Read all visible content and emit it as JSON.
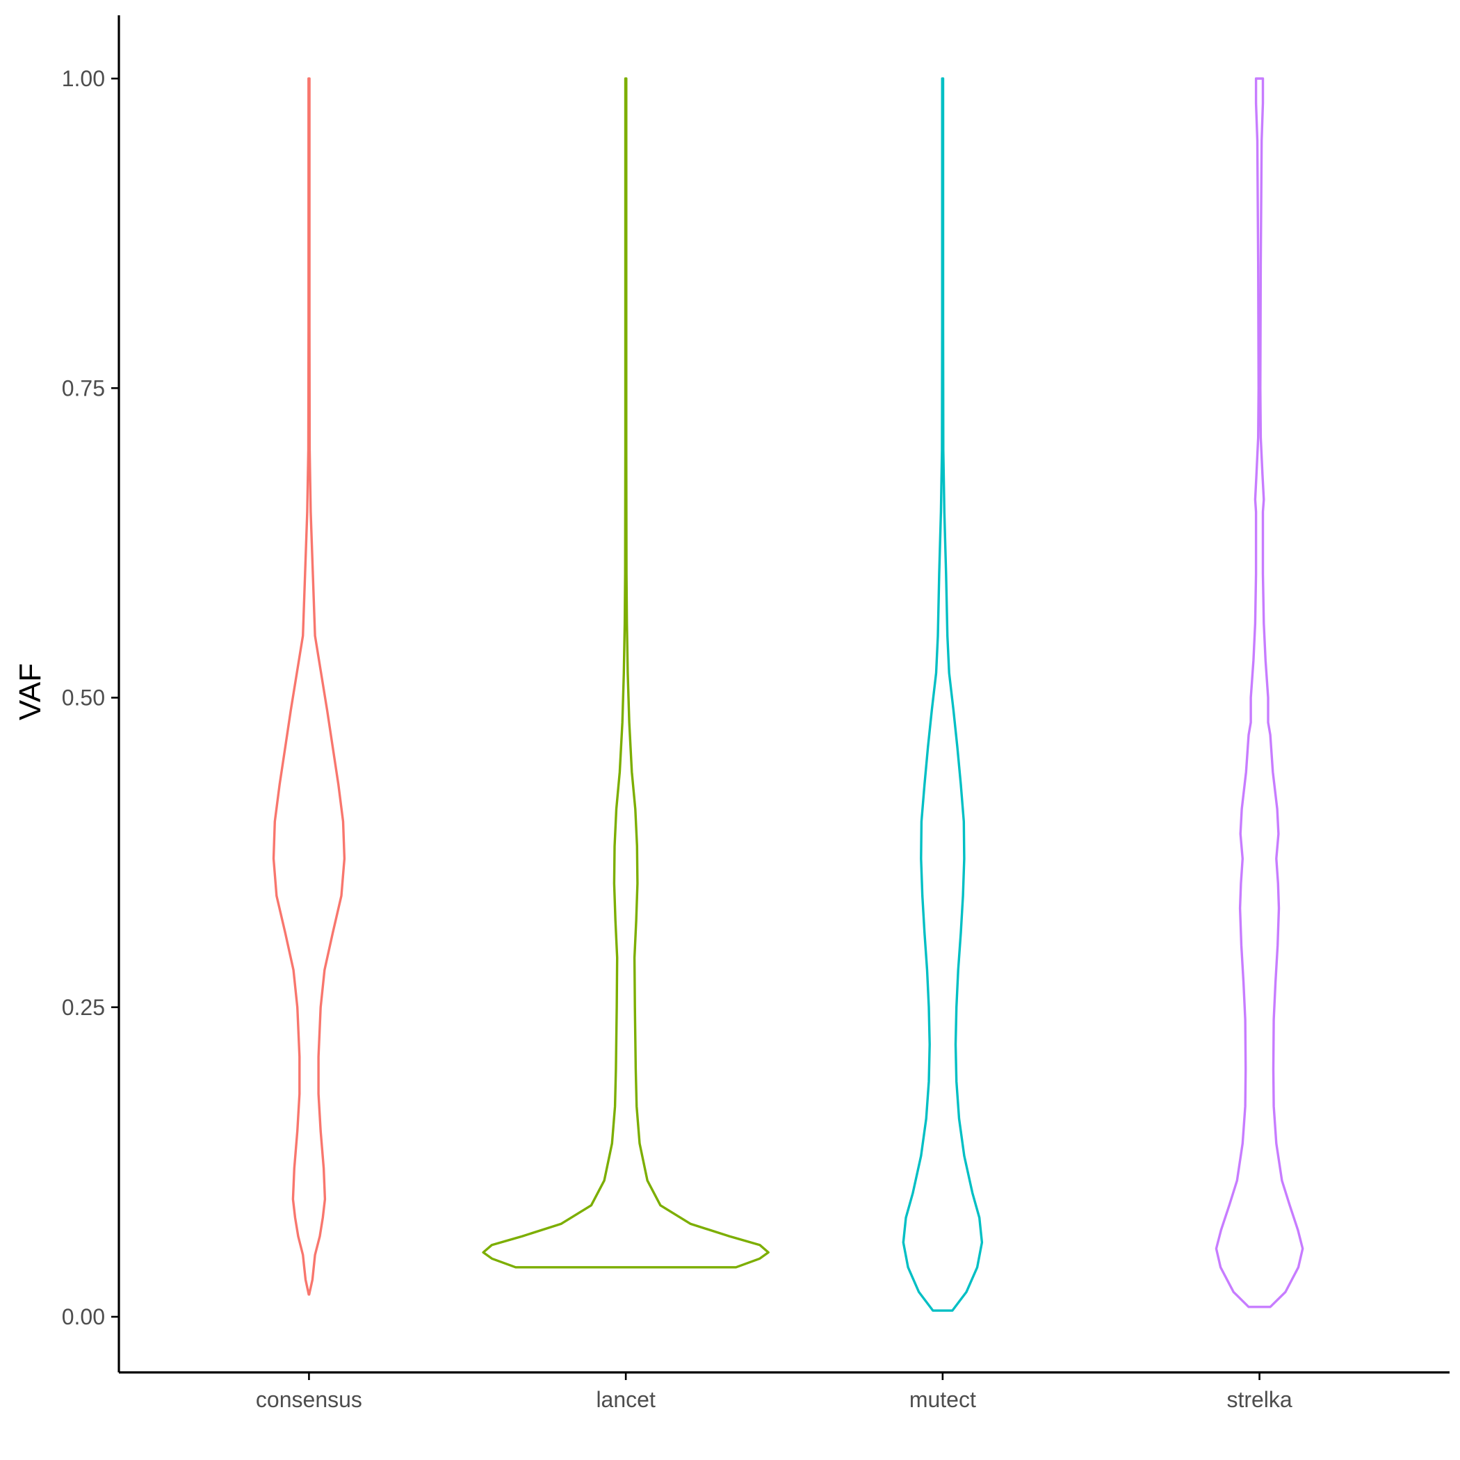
{
  "chart_data": {
    "type": "violin",
    "title": "",
    "xlabel": "",
    "ylabel": "VAF",
    "ylim": [
      -0.045,
      1.05
    ],
    "yticks": [
      0.0,
      0.25,
      0.5,
      0.75,
      1.0
    ],
    "ytick_labels": [
      "0.00",
      "0.25",
      "0.50",
      "0.75",
      "1.00"
    ],
    "grid": false,
    "legend": "none",
    "categories": [
      "consensus",
      "lancet",
      "mutect",
      "strelka"
    ],
    "series": [
      {
        "category": "consensus",
        "color": "#F8766D",
        "min": 0.018,
        "max": 1.0,
        "density": [
          [
            0.018,
            0.001
          ],
          [
            0.03,
            0.016
          ],
          [
            0.05,
            0.028
          ],
          [
            0.065,
            0.05
          ],
          [
            0.08,
            0.064
          ],
          [
            0.095,
            0.074
          ],
          [
            0.12,
            0.068
          ],
          [
            0.15,
            0.054
          ],
          [
            0.18,
            0.044
          ],
          [
            0.21,
            0.044
          ],
          [
            0.25,
            0.054
          ],
          [
            0.28,
            0.072
          ],
          [
            0.31,
            0.11
          ],
          [
            0.34,
            0.15
          ],
          [
            0.37,
            0.164
          ],
          [
            0.4,
            0.158
          ],
          [
            0.43,
            0.136
          ],
          [
            0.46,
            0.11
          ],
          [
            0.49,
            0.084
          ],
          [
            0.52,
            0.056
          ],
          [
            0.55,
            0.028
          ],
          [
            0.6,
            0.018
          ],
          [
            0.65,
            0.008
          ],
          [
            0.7,
            0.003
          ],
          [
            0.8,
            0.002
          ],
          [
            1.0,
            0.002
          ]
        ]
      },
      {
        "category": "lancet",
        "color": "#7CAE00",
        "min": 0.04,
        "max": 1.0,
        "density": [
          [
            0.04,
            0.51
          ],
          [
            0.047,
            0.62
          ],
          [
            0.052,
            0.66
          ],
          [
            0.058,
            0.62
          ],
          [
            0.065,
            0.48
          ],
          [
            0.075,
            0.3
          ],
          [
            0.09,
            0.16
          ],
          [
            0.11,
            0.1
          ],
          [
            0.14,
            0.064
          ],
          [
            0.17,
            0.05
          ],
          [
            0.2,
            0.046
          ],
          [
            0.25,
            0.042
          ],
          [
            0.29,
            0.04
          ],
          [
            0.32,
            0.048
          ],
          [
            0.35,
            0.054
          ],
          [
            0.38,
            0.052
          ],
          [
            0.41,
            0.044
          ],
          [
            0.44,
            0.028
          ],
          [
            0.48,
            0.016
          ],
          [
            0.52,
            0.009
          ],
          [
            0.56,
            0.005
          ],
          [
            0.6,
            0.003
          ],
          [
            0.7,
            0.002
          ],
          [
            1.0,
            0.002
          ]
        ]
      },
      {
        "category": "mutect",
        "color": "#00BFC4",
        "min": 0.005,
        "max": 1.0,
        "density": [
          [
            0.005,
            0.045
          ],
          [
            0.02,
            0.11
          ],
          [
            0.04,
            0.16
          ],
          [
            0.06,
            0.182
          ],
          [
            0.08,
            0.17
          ],
          [
            0.1,
            0.138
          ],
          [
            0.13,
            0.1
          ],
          [
            0.16,
            0.076
          ],
          [
            0.19,
            0.064
          ],
          [
            0.22,
            0.06
          ],
          [
            0.25,
            0.064
          ],
          [
            0.28,
            0.072
          ],
          [
            0.31,
            0.084
          ],
          [
            0.34,
            0.094
          ],
          [
            0.37,
            0.1
          ],
          [
            0.4,
            0.098
          ],
          [
            0.43,
            0.084
          ],
          [
            0.46,
            0.068
          ],
          [
            0.49,
            0.05
          ],
          [
            0.52,
            0.03
          ],
          [
            0.55,
            0.022
          ],
          [
            0.6,
            0.016
          ],
          [
            0.65,
            0.008
          ],
          [
            0.7,
            0.003
          ],
          [
            0.8,
            0.002
          ],
          [
            1.0,
            0.002
          ]
        ]
      },
      {
        "category": "strelka",
        "color": "#C77CFF",
        "min": 0.008,
        "max": 1.0,
        "density": [
          [
            0.008,
            0.05
          ],
          [
            0.02,
            0.12
          ],
          [
            0.04,
            0.18
          ],
          [
            0.055,
            0.2
          ],
          [
            0.07,
            0.178
          ],
          [
            0.09,
            0.14
          ],
          [
            0.11,
            0.104
          ],
          [
            0.14,
            0.078
          ],
          [
            0.17,
            0.066
          ],
          [
            0.2,
            0.064
          ],
          [
            0.24,
            0.066
          ],
          [
            0.27,
            0.074
          ],
          [
            0.3,
            0.084
          ],
          [
            0.33,
            0.09
          ],
          [
            0.35,
            0.086
          ],
          [
            0.37,
            0.078
          ],
          [
            0.39,
            0.088
          ],
          [
            0.41,
            0.082
          ],
          [
            0.44,
            0.062
          ],
          [
            0.47,
            0.05
          ],
          [
            0.48,
            0.04
          ],
          [
            0.5,
            0.04
          ],
          [
            0.53,
            0.028
          ],
          [
            0.56,
            0.02
          ],
          [
            0.6,
            0.016
          ],
          [
            0.65,
            0.016
          ],
          [
            0.66,
            0.02
          ],
          [
            0.68,
            0.014
          ],
          [
            0.71,
            0.006
          ],
          [
            0.75,
            0.004
          ],
          [
            0.85,
            0.006
          ],
          [
            0.95,
            0.01
          ],
          [
            0.98,
            0.016
          ],
          [
            1.0,
            0.016
          ]
        ]
      }
    ]
  }
}
